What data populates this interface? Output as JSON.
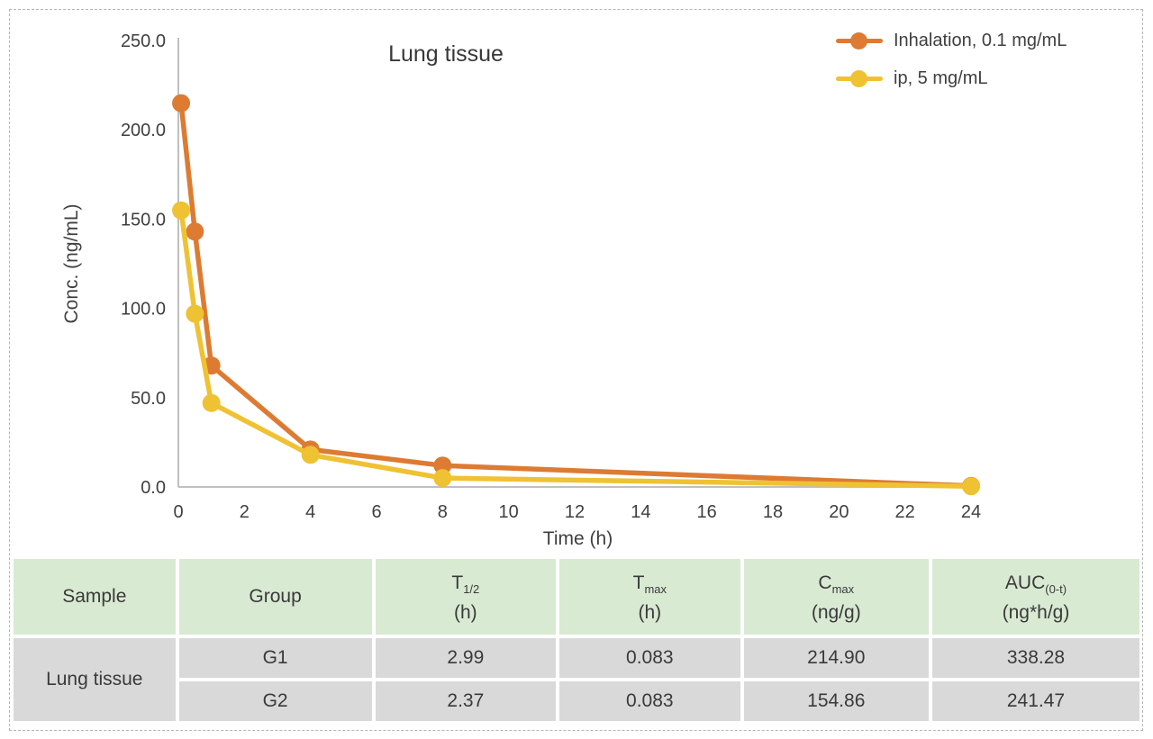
{
  "chart_data": {
    "type": "line",
    "title": "Lung tissue",
    "xlabel": "Time (h)",
    "ylabel": "Conc. (ng/mL)",
    "xlim": [
      0,
      24
    ],
    "ylim": [
      0,
      250
    ],
    "grid": false,
    "legend_position": "top-right",
    "axis_color": "#bfbfbf",
    "text_color": "#3f3f3f",
    "x_ticks": [
      {
        "v": 0,
        "label": "0"
      },
      {
        "v": 2,
        "label": "2"
      },
      {
        "v": 4,
        "label": "4"
      },
      {
        "v": 6,
        "label": "6"
      },
      {
        "v": 8,
        "label": "8"
      },
      {
        "v": 10,
        "label": "10"
      },
      {
        "v": 12,
        "label": "12"
      },
      {
        "v": 14,
        "label": "14"
      },
      {
        "v": 16,
        "label": "16"
      },
      {
        "v": 18,
        "label": "18"
      },
      {
        "v": 20,
        "label": "20"
      },
      {
        "v": 22,
        "label": "22"
      },
      {
        "v": 24,
        "label": "24"
      }
    ],
    "y_ticks": [
      {
        "v": 0,
        "label": "0.0"
      },
      {
        "v": 50,
        "label": "50.0"
      },
      {
        "v": 100,
        "label": "100.0"
      },
      {
        "v": 150,
        "label": "150.0"
      },
      {
        "v": 200,
        "label": "200.0"
      },
      {
        "v": 250,
        "label": "250.0"
      }
    ],
    "series": [
      {
        "name": "Inhalation, 0.1 mg/mL",
        "color": "#dd7b33",
        "points": [
          {
            "x": 0.083,
            "y": 214.9
          },
          {
            "x": 0.5,
            "y": 143
          },
          {
            "x": 1,
            "y": 68
          },
          {
            "x": 4,
            "y": 21
          },
          {
            "x": 8,
            "y": 12
          },
          {
            "x": 24,
            "y": 0.6
          }
        ]
      },
      {
        "name": "ip, 5 mg/mL",
        "color": "#efc233",
        "points": [
          {
            "x": 0.083,
            "y": 154.86
          },
          {
            "x": 0.5,
            "y": 97
          },
          {
            "x": 1,
            "y": 47
          },
          {
            "x": 4,
            "y": 18
          },
          {
            "x": 8,
            "y": 5
          },
          {
            "x": 24,
            "y": 0.4
          }
        ]
      }
    ]
  },
  "table": {
    "header_bg": "#d9ead3",
    "body_bg": "#d9d9d9",
    "headers": [
      {
        "label": "Sample"
      },
      {
        "label": "Group"
      },
      {
        "main": "T",
        "sub": "1/2",
        "unit": "(h)"
      },
      {
        "main": "T",
        "sub": "max",
        "unit": "(h)"
      },
      {
        "main": "C",
        "sub": "max",
        "unit": "(ng/g)"
      },
      {
        "main": "AUC",
        "sub": "(0-t)",
        "unit": "(ng*h/g)"
      }
    ],
    "sample": "Lung tissue",
    "rows": [
      {
        "group": "G1",
        "t_half": "2.99",
        "t_max": "0.083",
        "c_max": "214.90",
        "auc_0t": "338.28"
      },
      {
        "group": "G2",
        "t_half": "2.37",
        "t_max": "0.083",
        "c_max": "154.86",
        "auc_0t": "241.47"
      }
    ]
  }
}
